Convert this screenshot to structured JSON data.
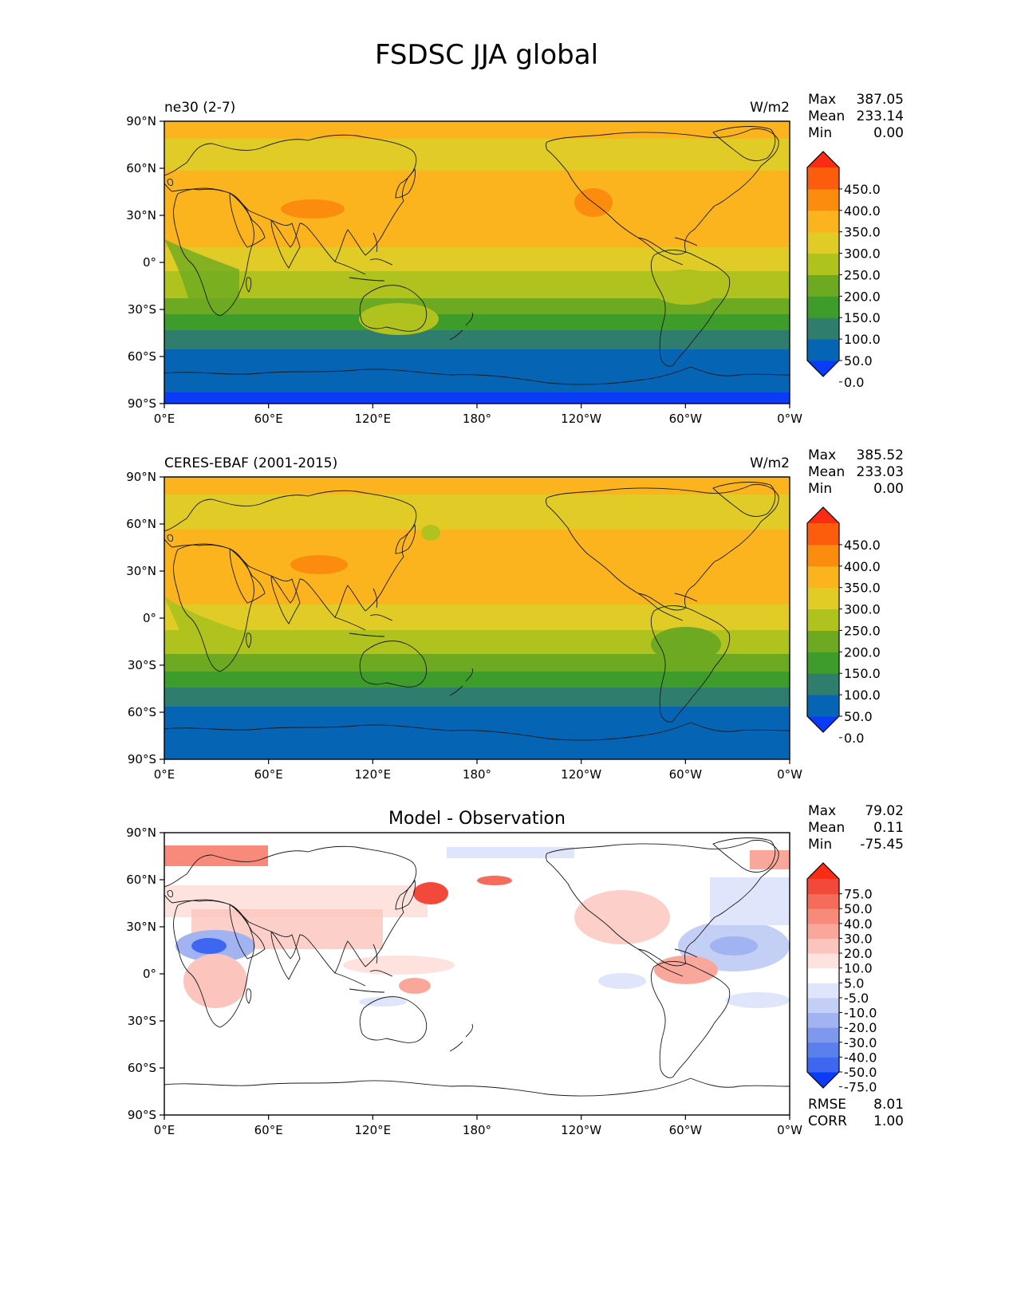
{
  "title": "FSDSC JJA global",
  "x_ticks": [
    "0°E",
    "60°E",
    "120°E",
    "180°",
    "120°W",
    "60°W",
    "0°W"
  ],
  "y_ticks": [
    "90°N",
    "60°N",
    "30°N",
    "0°",
    "30°S",
    "60°S",
    "90°S"
  ],
  "panels": [
    {
      "left_title": "ne30 (2-7)",
      "center_title": "",
      "units": "W/m2",
      "stats": [
        {
          "label": "Max",
          "value": "387.05"
        },
        {
          "label": "Mean",
          "value": "233.14"
        },
        {
          "label": "Min",
          "value": "0.00"
        }
      ],
      "colorbar_ticks": [
        "450.0",
        "400.0",
        "350.0",
        "300.0",
        "250.0",
        "200.0",
        "150.0",
        "100.0",
        "50.0",
        "0.0"
      ],
      "colors": [
        "#0a3cf8",
        "#0564b4",
        "#2f7d6d",
        "#3d9c2a",
        "#6daa21",
        "#b0c21e",
        "#e0cb27",
        "#fbb41e",
        "#fb8c0e",
        "#fb5d0c",
        "#fb2b14"
      ]
    },
    {
      "left_title": "CERES-EBAF (2001-2015)",
      "center_title": "",
      "units": "W/m2",
      "stats": [
        {
          "label": "Max",
          "value": "385.52"
        },
        {
          "label": "Mean",
          "value": "233.03"
        },
        {
          "label": "Min",
          "value": "0.00"
        }
      ],
      "colorbar_ticks": [
        "450.0",
        "400.0",
        "350.0",
        "300.0",
        "250.0",
        "200.0",
        "150.0",
        "100.0",
        "50.0",
        "0.0"
      ],
      "colors": [
        "#0a3cf8",
        "#0564b4",
        "#2f7d6d",
        "#3d9c2a",
        "#6daa21",
        "#b0c21e",
        "#e0cb27",
        "#fbb41e",
        "#fb8c0e",
        "#fb5d0c",
        "#fb2b14"
      ]
    },
    {
      "left_title": "",
      "center_title": "Model - Observation",
      "units": "",
      "stats": [
        {
          "label": "Max",
          "value": "79.02"
        },
        {
          "label": "Mean",
          "value": "0.11"
        },
        {
          "label": "Min",
          "value": "-75.45"
        }
      ],
      "colorbar_ticks": [
        "75.0",
        "50.0",
        "40.0",
        "30.0",
        "20.0",
        "10.0",
        "5.0",
        "-5.0",
        "-10.0",
        "-20.0",
        "-30.0",
        "-40.0",
        "-50.0",
        "-75.0"
      ],
      "colors": [
        "#0a3cf8",
        "#3d67f0",
        "#5a80ee",
        "#7e98ee",
        "#a1b3f0",
        "#c4cff5",
        "#dfe5fa",
        "#ffffff",
        "#fde2de",
        "#fbc4bc",
        "#f9a79b",
        "#f78a7b",
        "#f56c5b",
        "#f3493a",
        "#fb2b14"
      ],
      "bottom_stats": [
        {
          "label": "RMSE",
          "value": "8.01"
        },
        {
          "label": "CORR",
          "value": "1.00"
        }
      ]
    }
  ]
}
